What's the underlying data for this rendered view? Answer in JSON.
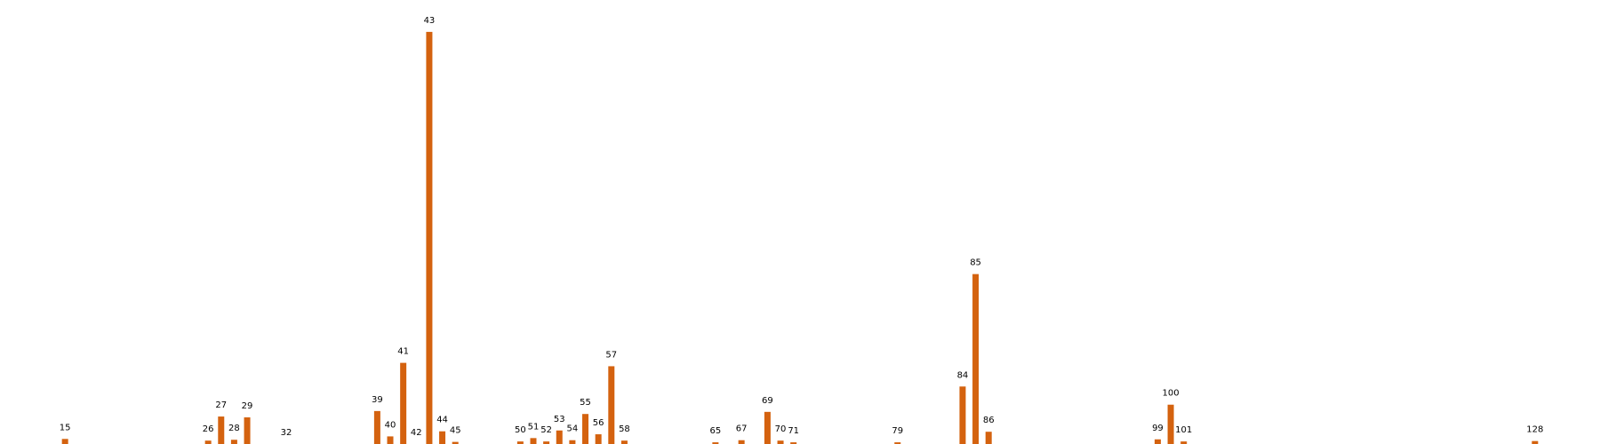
{
  "chart_data": {
    "type": "bar",
    "categories": [
      "15",
      "26",
      "27",
      "28",
      "29",
      "32",
      "39",
      "40",
      "41",
      "42",
      "43",
      "44",
      "45",
      "50",
      "51",
      "52",
      "53",
      "54",
      "55",
      "56",
      "57",
      "58",
      "65",
      "67",
      "69",
      "70",
      "71",
      "79",
      "84",
      "85",
      "86",
      "99",
      "100",
      "101",
      "128"
    ],
    "x": [
      15,
      26,
      27,
      28,
      29,
      32,
      39,
      40,
      41,
      42,
      43,
      44,
      45,
      50,
      51,
      52,
      53,
      54,
      55,
      56,
      57,
      58,
      65,
      67,
      69,
      70,
      71,
      79,
      84,
      85,
      86,
      99,
      100,
      101,
      128
    ],
    "values": [
      1.2,
      0.8,
      6.5,
      1.0,
      6.3,
      0,
      7.8,
      1.8,
      19.2,
      0,
      97.5,
      3.0,
      0.5,
      0.6,
      1.4,
      0.6,
      3.2,
      0.9,
      7.1,
      2.3,
      18.4,
      0.8,
      0.4,
      0.9,
      7.6,
      0.8,
      0.4,
      0.4,
      13.6,
      40.2,
      2.9,
      1.1,
      9.3,
      0.6,
      0.7
    ],
    "data_labels": [
      "15",
      "26",
      "27",
      "28",
      "29",
      "32",
      "39",
      "40",
      "41",
      "42",
      "43",
      "44",
      "45",
      "50",
      "51",
      "52",
      "53",
      "54",
      "55",
      "56",
      "57",
      "58",
      "65",
      "67",
      "69",
      "70",
      "71",
      "79",
      "84",
      "85",
      "86",
      "99",
      "100",
      "101",
      "128"
    ],
    "title": "",
    "xlabel": "",
    "ylabel": "",
    "xlim": [
      10,
      133
    ],
    "ylim": [
      0,
      100
    ],
    "grid": false,
    "legend": "none",
    "bar_color": "#d4620f",
    "label_color": "#000000",
    "background": "#ffffff"
  }
}
